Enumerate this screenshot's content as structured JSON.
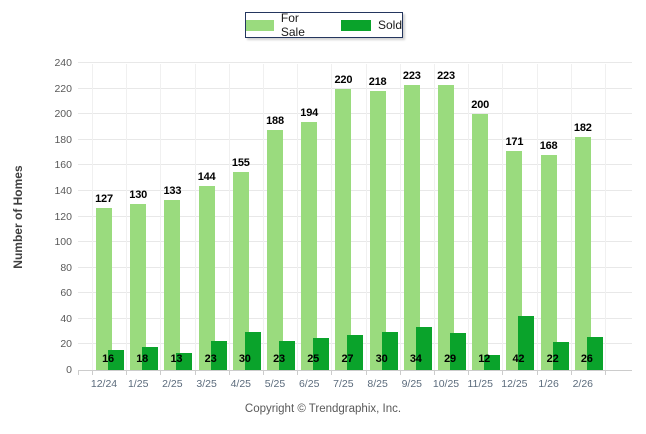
{
  "footer": "Copyright © Trendgraphix, Inc.",
  "y_axis_title": "Number of Homes",
  "chart_data": {
    "type": "bar",
    "title": "",
    "categories": [
      "12/24",
      "1/25",
      "2/25",
      "3/25",
      "4/25",
      "5/25",
      "6/25",
      "7/25",
      "8/25",
      "9/25",
      "10/25",
      "11/25",
      "12/25",
      "1/26",
      "2/26"
    ],
    "series": [
      {
        "name": "For Sale",
        "color": "#9ADB7E",
        "values": [
          127,
          130,
          133,
          144,
          155,
          188,
          194,
          220,
          218,
          223,
          223,
          200,
          171,
          168,
          182
        ]
      },
      {
        "name": "Sold",
        "color": "#0AA32B",
        "values": [
          16,
          18,
          13,
          23,
          30,
          23,
          25,
          27,
          30,
          34,
          29,
          12,
          42,
          22,
          26
        ]
      }
    ],
    "xlabel": "",
    "ylabel": "Number of Homes",
    "ylim": [
      0,
      240
    ],
    "yticks": [
      0,
      20,
      40,
      60,
      80,
      100,
      120,
      140,
      160,
      180,
      200,
      220,
      240
    ],
    "grid": true,
    "legend_position": "top-center",
    "colors": {
      "gridline": "#E8E8E8",
      "vertical_gridline": "#F0F0F0",
      "axis_line": "#CCCCCC",
      "ytick_text": "#595959",
      "xtick_text": "#5B6B7C",
      "value_text": "#000000",
      "legend_border": "#24365E"
    }
  }
}
